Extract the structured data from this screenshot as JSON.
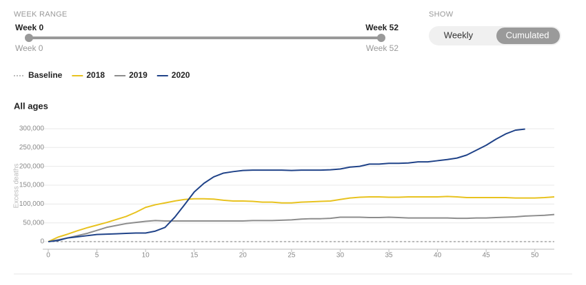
{
  "controls": {
    "week_range": {
      "label": "WEEK RANGE",
      "start_label": "Week 0",
      "end_label": "Week 52",
      "start_value_label": "Week 0",
      "end_value_label": "Week 52"
    },
    "show": {
      "label": "SHOW",
      "options": [
        "Weekly",
        "Cumulated"
      ],
      "selected": 1
    }
  },
  "chart_data": {
    "type": "line",
    "title": "All ages",
    "y_label": "Excess deaths",
    "x": [
      0,
      1,
      2,
      3,
      4,
      5,
      6,
      7,
      8,
      9,
      10,
      11,
      12,
      13,
      14,
      15,
      16,
      17,
      18,
      19,
      20,
      21,
      22,
      23,
      24,
      25,
      26,
      27,
      28,
      29,
      30,
      31,
      32,
      33,
      34,
      35,
      36,
      37,
      38,
      39,
      40,
      41,
      42,
      43,
      44,
      45,
      46,
      47,
      48,
      49,
      50,
      51,
      52
    ],
    "xlim": [
      0,
      52
    ],
    "xticks": [
      0,
      5,
      10,
      15,
      20,
      25,
      30,
      35,
      40,
      45,
      50
    ],
    "ylim": [
      -20000,
      320000
    ],
    "yticks": [
      0,
      {
        "value": 50000,
        "label": "50,000"
      },
      {
        "value": 100000,
        "label": "100,000"
      },
      {
        "value": 150000,
        "label": "150,000"
      },
      {
        "value": 200000,
        "label": "200,000"
      },
      {
        "value": 250000,
        "label": "250,000"
      },
      {
        "value": 300000,
        "label": "300,000"
      }
    ],
    "grid": true,
    "series": [
      {
        "name": "Baseline",
        "color": "#777777",
        "dashed": true,
        "values": [
          0,
          0,
          0,
          0,
          0,
          0,
          0,
          0,
          0,
          0,
          0,
          0,
          0,
          0,
          0,
          0,
          0,
          0,
          0,
          0,
          0,
          0,
          0,
          0,
          0,
          0,
          0,
          0,
          0,
          0,
          0,
          0,
          0,
          0,
          0,
          0,
          0,
          0,
          0,
          0,
          0,
          0,
          0,
          0,
          0,
          0,
          0,
          0,
          0,
          0,
          0,
          0,
          0
        ]
      },
      {
        "name": "2018",
        "color": "#e8c21e",
        "values": [
          0,
          12000,
          20000,
          29000,
          37000,
          44000,
          51000,
          59000,
          67000,
          78000,
          91000,
          98000,
          103000,
          108000,
          112000,
          114000,
          114000,
          113000,
          110000,
          108000,
          108000,
          107000,
          105000,
          105000,
          103000,
          103000,
          105000,
          106000,
          107000,
          108000,
          112000,
          116000,
          118000,
          119000,
          119000,
          118000,
          118000,
          119000,
          119000,
          119000,
          119000,
          120000,
          119000,
          117000,
          117000,
          117000,
          117000,
          117000,
          116000,
          116000,
          116000,
          117000,
          119000
        ]
      },
      {
        "name": "2019",
        "color": "#8c8c8c",
        "values": [
          0,
          5000,
          10000,
          16000,
          22000,
          30000,
          38000,
          43000,
          48000,
          51000,
          54000,
          56000,
          55000,
          55000,
          55000,
          55000,
          55000,
          55000,
          55000,
          55000,
          55000,
          56000,
          56000,
          56000,
          57000,
          58000,
          60000,
          61000,
          61000,
          62000,
          65000,
          65000,
          65000,
          64000,
          64000,
          65000,
          64000,
          63000,
          63000,
          63000,
          63000,
          63000,
          62000,
          62000,
          63000,
          63000,
          64000,
          65000,
          66000,
          68000,
          69000,
          70000,
          72000
        ]
      },
      {
        "name": "2020",
        "color": "#1f4288",
        "values": [
          0,
          3000,
          10000,
          13000,
          16000,
          19000,
          20000,
          21000,
          22000,
          23000,
          23000,
          28000,
          38000,
          65000,
          98000,
          132000,
          155000,
          172000,
          182000,
          186000,
          189000,
          190000,
          190000,
          190000,
          190000,
          189000,
          190000,
          190000,
          190000,
          191000,
          193000,
          198000,
          200000,
          206000,
          206000,
          208000,
          208000,
          209000,
          212000,
          212000,
          215000,
          218000,
          222000,
          230000,
          243000,
          256000,
          272000,
          286000,
          296000,
          299000,
          null,
          null,
          null
        ]
      }
    ]
  }
}
